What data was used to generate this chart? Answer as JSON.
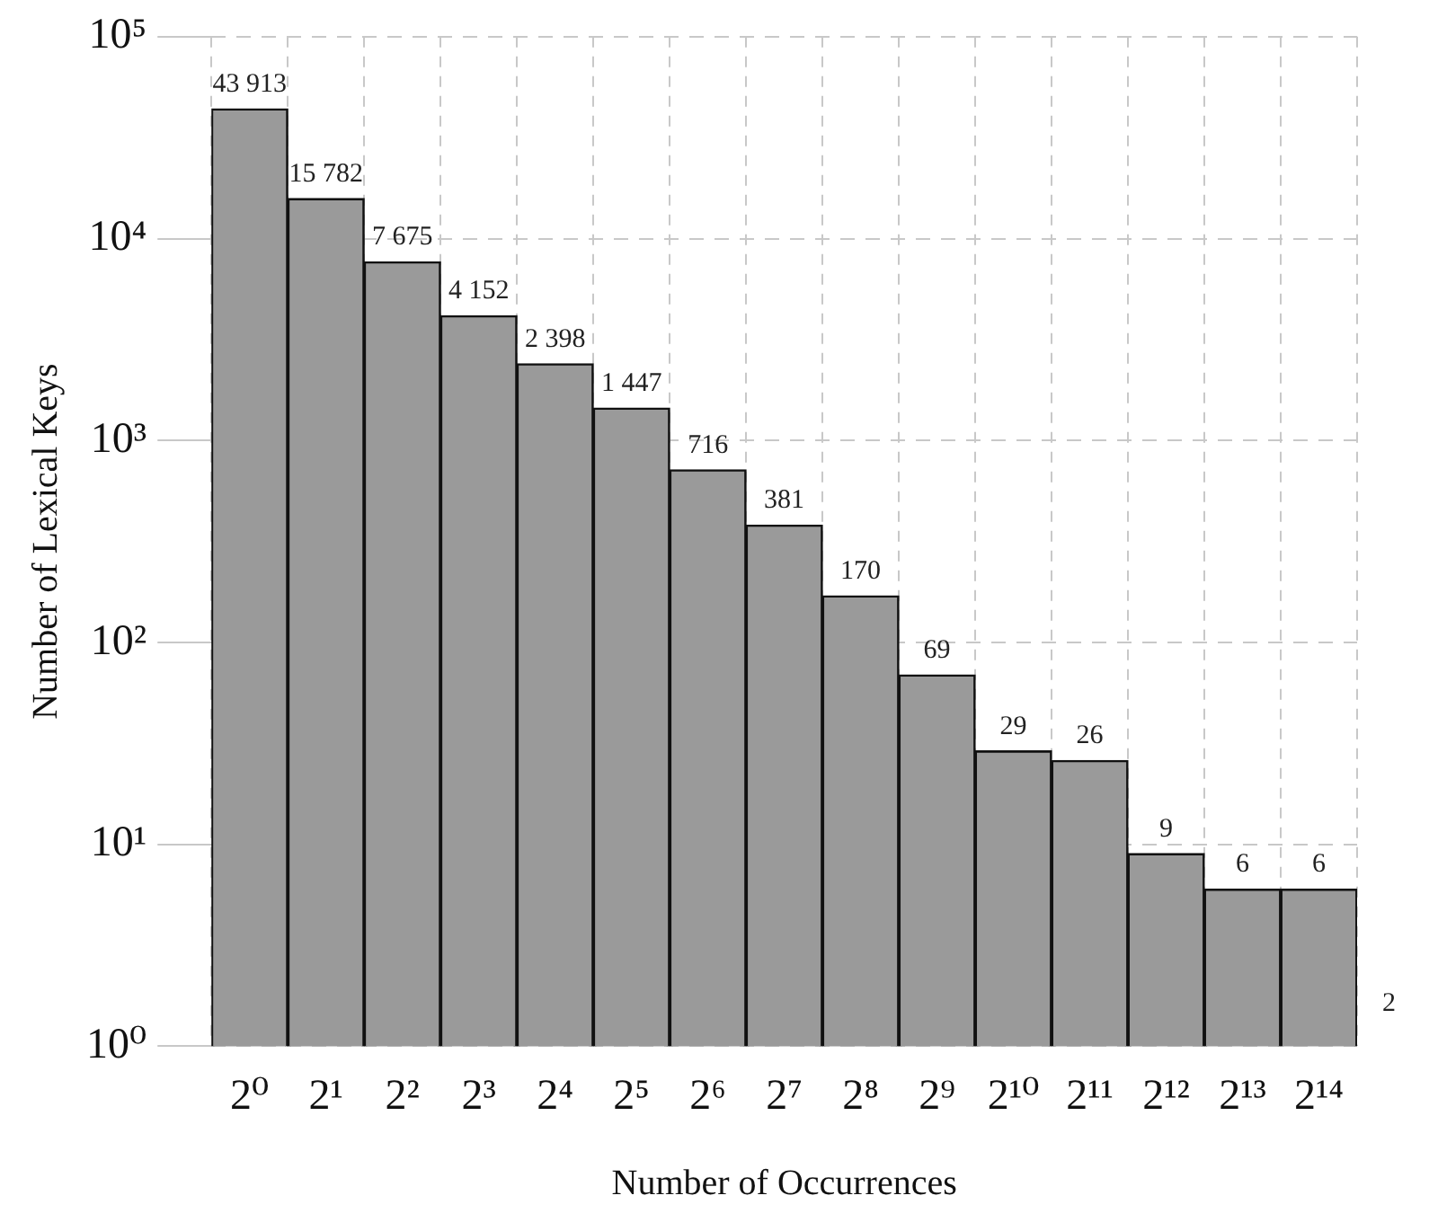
{
  "chart_data": {
    "type": "bar",
    "xlabel": "Number of Occurrences",
    "ylabel": "Number of Lexical Keys",
    "categories": [
      "2⁰",
      "2¹",
      "2²",
      "2³",
      "2⁴",
      "2⁵",
      "2⁶",
      "2⁷",
      "2⁸",
      "2⁹",
      "2¹⁰",
      "2¹¹",
      "2¹²",
      "2¹³",
      "2¹⁴"
    ],
    "values": [
      43913,
      15782,
      7675,
      4152,
      2398,
      1447,
      716,
      381,
      170,
      69,
      29,
      26,
      9,
      6,
      6
    ],
    "value_labels": [
      "43 913",
      "15 782",
      "7 675",
      "4 152",
      "2 398",
      "1 447",
      "716",
      "381",
      "170",
      "69",
      "29",
      "26",
      "9",
      "6",
      "6"
    ],
    "color": "#9a9a9a",
    "log": "y",
    "ylim": [
      1,
      100000
    ],
    "yticks": [
      {
        "value": 1,
        "label": "10⁰"
      },
      {
        "value": 10,
        "label": "10¹"
      },
      {
        "value": 100,
        "label": "10²"
      },
      {
        "value": 1000,
        "label": "10³"
      },
      {
        "value": 10000,
        "label": "10⁴"
      },
      {
        "value": 100000,
        "label": "10⁵"
      }
    ],
    "grid": true,
    "annotations": [
      "2"
    ]
  }
}
